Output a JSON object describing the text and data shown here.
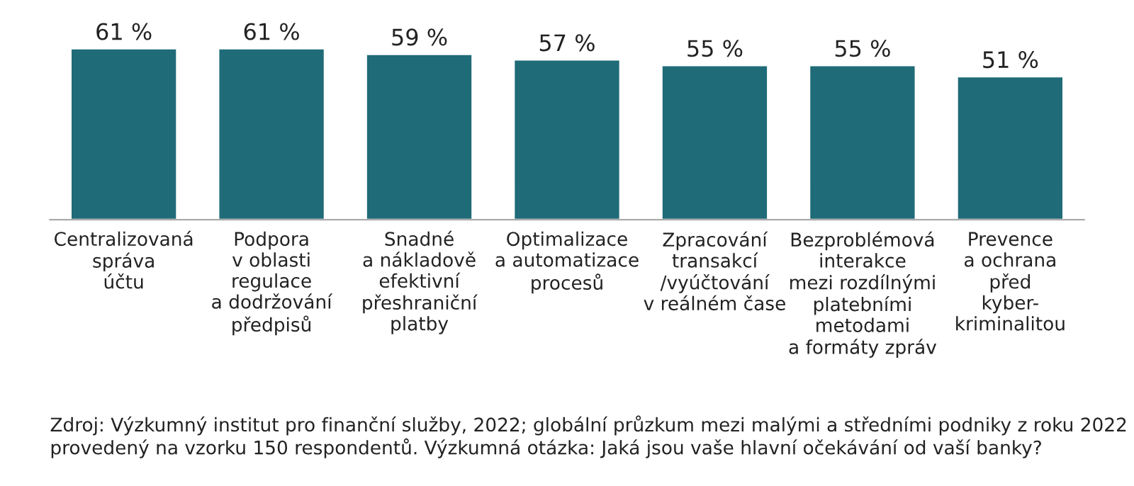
{
  "chart_data": {
    "type": "bar",
    "categories": [
      "Centralizovaná\nspráva\núčtu",
      "Podpora\nv oblasti\nregulace\na dodržování\npředpisů",
      "Snadné\na nákladově\nefektivní\npřeshraniční\nplatby",
      "Optimalizace\na automatizace\nprocesů",
      "Zpracování\ntransakcí\n/vyúčtování\nv reálném čase",
      "Bezproblémová\ninterakce\nmezi rozdílnými\nplatebními\nmetodami\na formáty zpráv",
      "Prevence\na ochrana\npřed\nkyber-\nkriminalitou"
    ],
    "values": [
      61,
      61,
      59,
      57,
      55,
      55,
      51
    ],
    "value_labels": [
      "61 %",
      "61 %",
      "59 %",
      "57 %",
      "55 %",
      "55 %",
      "51 %"
    ],
    "color": "#1f6b78",
    "tick_labels": "x",
    "grid": false,
    "annotations": [
      "Zdroj: Výzkumný institut pro finanční služby, 2022; globální průzkum mezi malými a středními podniky z roku 2022 provedený na vzorku 150 respondentů. Výzkumná otázka: Jaká jsou vaše hlavní očekávání od vaší banky?"
    ]
  }
}
